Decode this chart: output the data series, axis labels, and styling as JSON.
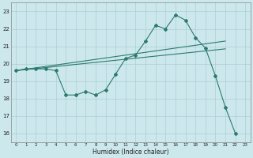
{
  "xlabel": "Humidex (Indice chaleur)",
  "ylabel": "",
  "xlim": [
    -0.5,
    23.5
  ],
  "ylim": [
    15.5,
    23.5
  ],
  "yticks": [
    16,
    17,
    18,
    19,
    20,
    21,
    22,
    23
  ],
  "xticks": [
    0,
    1,
    2,
    3,
    4,
    5,
    6,
    7,
    8,
    9,
    10,
    11,
    12,
    13,
    14,
    15,
    16,
    17,
    18,
    19,
    20,
    21,
    22,
    23
  ],
  "bg_color": "#cce8ec",
  "grid_color": "#aacfd6",
  "line_color": "#2d7a6e",
  "line1_x": [
    0,
    1,
    2,
    3,
    4,
    5,
    6,
    7,
    8,
    9,
    10,
    11,
    12,
    13,
    14,
    15,
    16,
    17,
    18,
    19,
    20,
    21,
    22
  ],
  "line1_y": [
    19.6,
    19.7,
    19.7,
    19.7,
    19.6,
    18.2,
    18.2,
    18.4,
    18.2,
    18.5,
    19.4,
    20.3,
    20.5,
    21.3,
    22.2,
    22.0,
    22.8,
    22.5,
    21.5,
    20.9,
    19.3,
    17.5,
    16.0
  ],
  "line2_x": [
    0,
    21
  ],
  "line2_y": [
    19.6,
    20.85
  ],
  "line3_x": [
    0,
    21
  ],
  "line3_y": [
    19.6,
    21.3
  ]
}
